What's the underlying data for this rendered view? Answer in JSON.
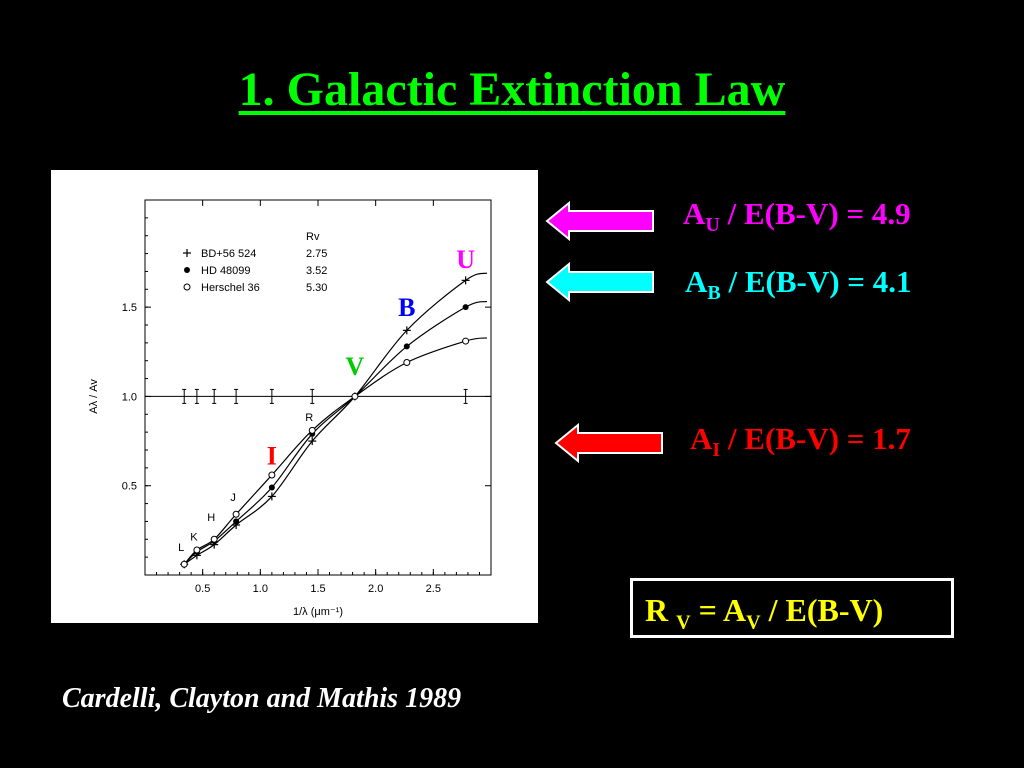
{
  "title": "1. Galactic Extinction Law",
  "equations": {
    "u": {
      "prefix": "A",
      "sub": "U",
      "rest": " / E(B-V) = 4.9",
      "color": "#ff00ff"
    },
    "b": {
      "prefix": "A",
      "sub": "B",
      "rest": " / E(B-V) = 4.1",
      "color": "#00ffff"
    },
    "i": {
      "prefix": "A",
      "sub": "I",
      "rest": " / E(B-V) = 1.7",
      "color": "#ff0000"
    }
  },
  "rv_box": {
    "part1": "R ",
    "sub1": "V",
    "part2": " = A",
    "sub2": "V",
    "part3": " / E(B-V)"
  },
  "citation": "Cardelli, Clayton and Mathis 1989",
  "band_labels": {
    "U": {
      "text": "U",
      "color": "#ff00ff"
    },
    "B": {
      "text": "B",
      "color": "#0000ff"
    },
    "V": {
      "text": "V",
      "color": "#00cc00"
    },
    "I": {
      "text": "I",
      "color": "#ff0000"
    }
  },
  "chart_data": {
    "type": "line",
    "xlabel": "1/λ (μm⁻¹)",
    "ylabel": "Aλ / Av",
    "xlim": [
      0.0,
      3.0
    ],
    "ylim": [
      0.0,
      2.1
    ],
    "xticks": [
      0.5,
      1.0,
      1.5,
      2.0,
      2.5
    ],
    "xtick_labels": [
      "0.5",
      "1.0",
      "1.5",
      "2.0",
      "2.5"
    ],
    "yticks": [
      0.5,
      1.0,
      1.5
    ],
    "ytick_labels": [
      "0.5",
      "1.0",
      "1.5"
    ],
    "legend_header": "Rv",
    "point_labels": [
      {
        "text": "L",
        "x": 0.34,
        "y": 0.1
      },
      {
        "text": "K",
        "x": 0.45,
        "y": 0.16
      },
      {
        "text": "H",
        "x": 0.6,
        "y": 0.27
      },
      {
        "text": "J",
        "x": 0.79,
        "y": 0.38
      },
      {
        "text": "R",
        "x": 1.45,
        "y": 0.83
      }
    ],
    "series": [
      {
        "name": "BD+56 524",
        "rv": "2.75",
        "marker": "plus",
        "x": [
          0.34,
          0.45,
          0.6,
          0.79,
          1.1,
          1.45,
          1.82,
          2.27,
          2.78
        ],
        "y": [
          0.06,
          0.11,
          0.17,
          0.28,
          0.44,
          0.75,
          1.0,
          1.37,
          1.65
        ]
      },
      {
        "name": "HD 48099",
        "rv": "3.52",
        "marker": "dot",
        "x": [
          0.34,
          0.45,
          0.6,
          0.79,
          1.1,
          1.45,
          1.82,
          2.27,
          2.78
        ],
        "y": [
          0.06,
          0.13,
          0.19,
          0.3,
          0.49,
          0.79,
          1.0,
          1.28,
          1.5
        ]
      },
      {
        "name": "Herschel 36",
        "rv": "5.30",
        "marker": "circle",
        "x": [
          0.34,
          0.45,
          0.6,
          0.79,
          1.1,
          1.45,
          1.82,
          2.27,
          2.78
        ],
        "y": [
          0.06,
          0.14,
          0.2,
          0.34,
          0.56,
          0.81,
          1.0,
          1.19,
          1.31
        ]
      }
    ],
    "reference_line": {
      "y": 1.0,
      "errorbar_x": [
        0.34,
        0.45,
        0.6,
        0.79,
        1.1,
        1.45,
        2.78
      ]
    }
  }
}
